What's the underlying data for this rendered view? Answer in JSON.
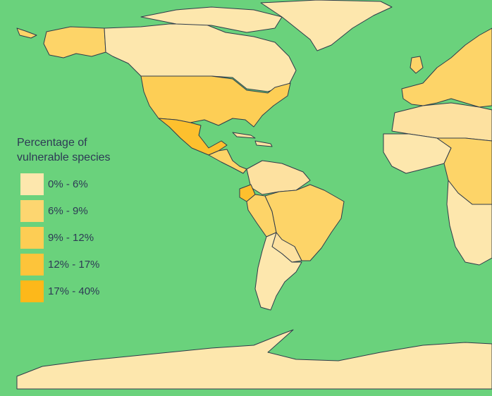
{
  "map": {
    "ocean_color": "#6ad27c",
    "border_color": "#2f3b4a",
    "regions": [
      {
        "name": "canada",
        "color": "#fde7ad"
      },
      {
        "name": "alaska",
        "color": "#fdd468"
      },
      {
        "name": "greenland",
        "color": "#fde7ad"
      },
      {
        "name": "usa",
        "color": "#fdce55"
      },
      {
        "name": "mexico",
        "color": "#fdc02e"
      },
      {
        "name": "central-america",
        "color": "#fdd468"
      },
      {
        "name": "caribbean",
        "color": "#fde1a0"
      },
      {
        "name": "colombia-venezuela",
        "color": "#fde1a0"
      },
      {
        "name": "ecuador",
        "color": "#fdc02e"
      },
      {
        "name": "brazil",
        "color": "#fdd468"
      },
      {
        "name": "peru",
        "color": "#fdd468"
      },
      {
        "name": "bolivia-paraguay",
        "color": "#fde1a0"
      },
      {
        "name": "argentina-chile",
        "color": "#fde7ad"
      },
      {
        "name": "europe",
        "color": "#fdd468"
      },
      {
        "name": "north-africa",
        "color": "#fde1a0"
      },
      {
        "name": "west-africa",
        "color": "#fde7ad"
      },
      {
        "name": "central-africa",
        "color": "#fdd468"
      },
      {
        "name": "southern-africa",
        "color": "#fde7ad"
      },
      {
        "name": "antarctica",
        "color": "#fde7ad"
      }
    ]
  },
  "legend": {
    "title": "Percentage of vulnerable species",
    "items": [
      {
        "label": "0% - 6%",
        "color": "#fde7ad"
      },
      {
        "label": "6% - 9%",
        "color": "#fdd670"
      },
      {
        "label": "9% - 12%",
        "color": "#fdcd54"
      },
      {
        "label": "12% - 17%",
        "color": "#fdc43a"
      },
      {
        "label": "17% - 40%",
        "color": "#fdb81a"
      }
    ]
  }
}
